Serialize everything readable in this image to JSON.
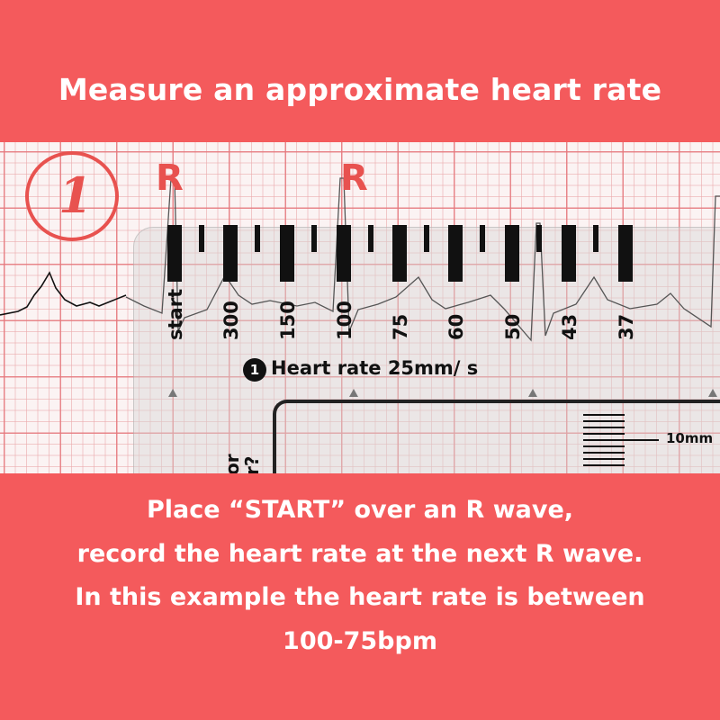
{
  "header": {
    "title": "Measure an approximate heart rate"
  },
  "figure": {
    "step_marker": "1",
    "r_labels": [
      "R",
      "R"
    ],
    "ruler_scale": [
      "start",
      "300",
      "150",
      "100",
      "75",
      "60",
      "50",
      "43",
      "37"
    ],
    "ruler_caption_number": "1",
    "ruler_caption": "Heart rate 25mm/ s",
    "calibration_label": "10mm",
    "partial_text": [
      "or",
      "r?"
    ]
  },
  "footer": {
    "lines": [
      "Place “START” over an R wave,",
      "record the heart rate at the next R wave.",
      "In this example the heart rate is between",
      "100-75bpm"
    ]
  },
  "colors": {
    "banner": "#f45a5c",
    "annotation_red": "#e8524f"
  }
}
